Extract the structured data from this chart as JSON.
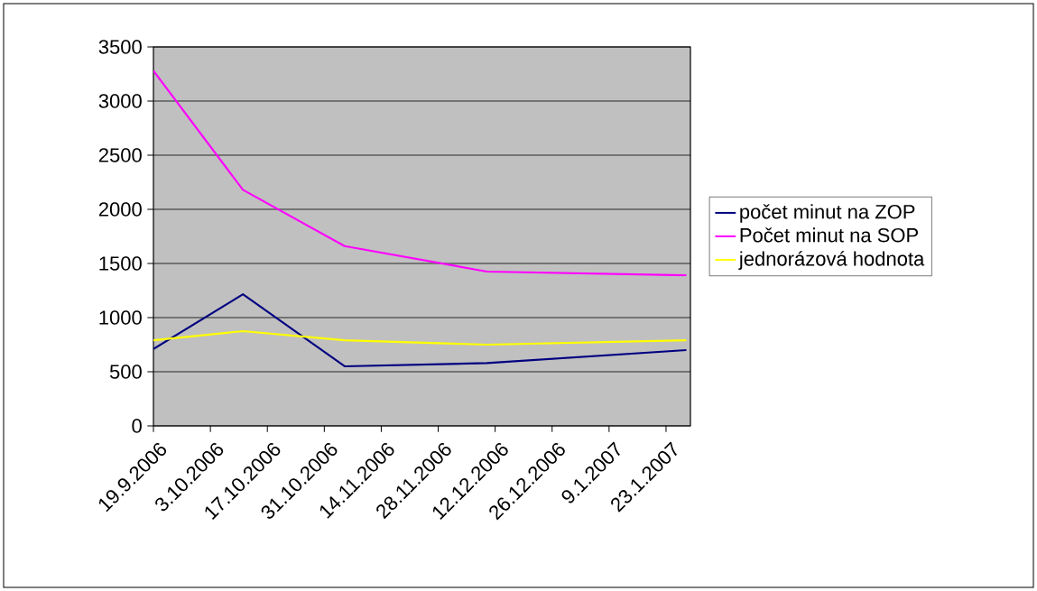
{
  "chart_data": {
    "type": "line",
    "x": [
      "2006-09-19",
      "2006-10-11",
      "2006-11-05",
      "2006-12-10",
      "2007-01-28"
    ],
    "series": [
      {
        "name": "počet minut na ZOP",
        "color": "#000080",
        "values": [
          710,
          1215,
          550,
          580,
          700
        ]
      },
      {
        "name": "Počet minut na SOP",
        "color": "#ff00ff",
        "values": [
          3280,
          2180,
          1660,
          1425,
          1390
        ]
      },
      {
        "name": "jednorázová hodnota",
        "color": "#ffff00",
        "values": [
          790,
          875,
          790,
          750,
          790
        ]
      }
    ],
    "xlim": [
      "2006-09-19",
      "2007-01-29"
    ],
    "xticks": [
      {
        "value": "2006-09-19",
        "label": "19.9.2006"
      },
      {
        "value": "2006-10-03",
        "label": "3.10.2006"
      },
      {
        "value": "2006-10-17",
        "label": "17.10.2006"
      },
      {
        "value": "2006-10-31",
        "label": "31.10.2006"
      },
      {
        "value": "2006-11-14",
        "label": "14.11.2006"
      },
      {
        "value": "2006-11-28",
        "label": "28.11.2006"
      },
      {
        "value": "2006-12-12",
        "label": "12.12.2006"
      },
      {
        "value": "2006-12-26",
        "label": "26.12.2006"
      },
      {
        "value": "2007-01-09",
        "label": "9.1.2007"
      },
      {
        "value": "2007-01-23",
        "label": "23.1.2007"
      }
    ],
    "ylim": [
      0,
      3500
    ],
    "yticks": [
      0,
      500,
      1000,
      1500,
      2000,
      2500,
      3000,
      3500
    ],
    "grid": "y",
    "legend": "right"
  }
}
